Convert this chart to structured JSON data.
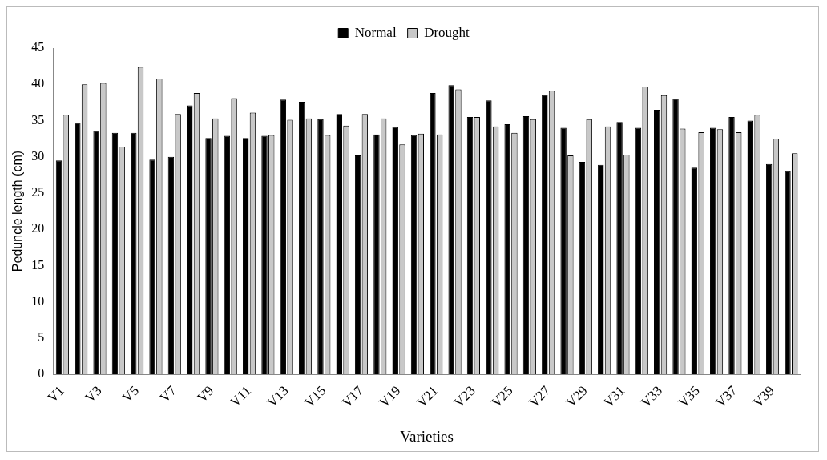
{
  "chart_data": {
    "type": "bar",
    "xlabel": "Varieties",
    "ylabel": "Peduncle length (cm)",
    "categories": [
      "V1",
      null,
      "V3",
      null,
      "V5",
      null,
      "V7",
      null,
      "V9",
      null,
      "V11",
      null,
      "V13",
      null,
      "V15",
      null,
      "V17",
      null,
      "V19",
      null,
      "V21",
      null,
      "V23",
      null,
      "V25",
      null,
      "V27",
      null,
      "V29",
      null,
      "V31",
      null,
      "V33",
      null,
      "V35",
      null,
      "V37",
      null,
      "V39",
      null
    ],
    "series": [
      {
        "name": "Normal",
        "color": "#000000",
        "values": [
          29.5,
          34.7,
          33.6,
          33.3,
          33.3,
          29.6,
          30,
          37.1,
          32.6,
          32.9,
          32.6,
          32.9,
          37.9,
          37.6,
          35.2,
          35.9,
          30.2,
          33.1,
          34.1,
          33,
          38.8,
          39.9,
          35.5,
          37.8,
          34.5,
          35.6,
          38.5,
          34,
          29.3,
          28.9,
          34.8,
          34,
          36.5,
          38,
          28.5,
          34,
          35.5,
          35,
          29,
          28
        ]
      },
      {
        "name": "Drought",
        "color": "#c8c8c8",
        "values": [
          35.8,
          40,
          40.2,
          31.4,
          42.4,
          40.8,
          35.9,
          38.8,
          35.3,
          38.1,
          36.1,
          33,
          35.1,
          35.3,
          33,
          34.3,
          35.9,
          35.3,
          31.7,
          33.2,
          33.1,
          39.3,
          35.5,
          34.2,
          33.3,
          35.2,
          39.1,
          30.2,
          35.2,
          34.2,
          30.3,
          39.7,
          38.5,
          33.9,
          33.4,
          33.8,
          33.4,
          35.8,
          32.5,
          30.5
        ]
      }
    ],
    "ylim": [
      0,
      45
    ],
    "yticks": [
      0,
      5,
      10,
      15,
      20,
      25,
      30,
      35,
      40,
      45
    ],
    "grid": false,
    "legend": "top"
  }
}
